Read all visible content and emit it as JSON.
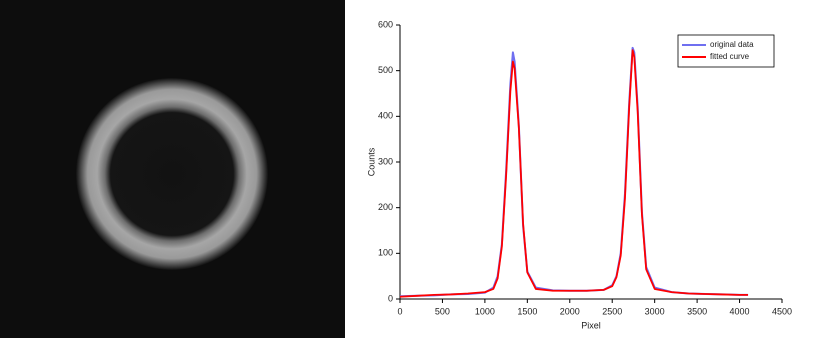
{
  "chart_data": {
    "type": "line",
    "x_label": "Pixel",
    "y_label": "Counts",
    "x": [
      0,
      200,
      400,
      600,
      800,
      1000,
      1100,
      1150,
      1200,
      1250,
      1300,
      1330,
      1350,
      1400,
      1450,
      1500,
      1600,
      1800,
      2000,
      2200,
      2400,
      2500,
      2550,
      2600,
      2650,
      2700,
      2740,
      2760,
      2800,
      2850,
      2900,
      3000,
      3200,
      3400,
      3600,
      3800,
      4000,
      4100
    ],
    "series": [
      {
        "name": "original data",
        "color": "#6f6ff0",
        "values": [
          6,
          7,
          8,
          10,
          11,
          14,
          25,
          50,
          120,
          280,
          470,
          540,
          520,
          380,
          160,
          60,
          25,
          19,
          18,
          18,
          20,
          30,
          50,
          100,
          230,
          430,
          550,
          540,
          420,
          190,
          70,
          25,
          15,
          12,
          11,
          10,
          9,
          9
        ]
      },
      {
        "name": "fitted curve",
        "color": "#ff0000",
        "values": [
          5,
          7,
          9,
          10,
          12,
          15,
          22,
          45,
          115,
          270,
          455,
          520,
          505,
          375,
          165,
          58,
          22,
          18,
          18,
          18,
          20,
          28,
          48,
          95,
          220,
          420,
          545,
          530,
          410,
          185,
          65,
          22,
          15,
          12,
          11,
          10,
          9,
          9
        ]
      }
    ],
    "xlim": [
      0,
      4500
    ],
    "xticks": [
      0,
      500,
      1000,
      1500,
      2000,
      2500,
      3000,
      3500,
      4000,
      4500
    ],
    "ylim": [
      0,
      600
    ],
    "yticks": [
      0,
      100,
      200,
      300,
      400,
      500,
      600
    ],
    "legend": "upper right"
  }
}
